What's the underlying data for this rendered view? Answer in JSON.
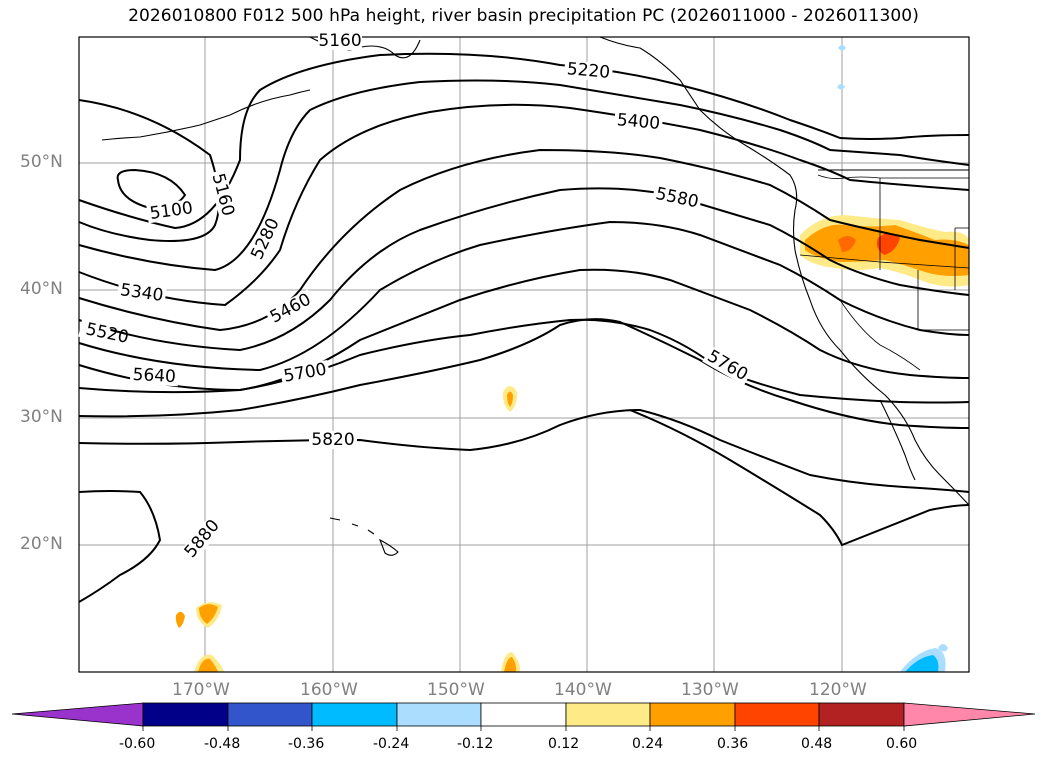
{
  "title": "2026010800 F012 500 hPa height, river basin precipitation PC (2026011000 - 2026011300)",
  "lat_labels": [
    "50°N",
    "40°N",
    "30°N",
    "20°N"
  ],
  "lon_labels": [
    "170°W",
    "160°W",
    "150°W",
    "140°W",
    "130°W",
    "120°W"
  ],
  "contour_labels": [
    "5160",
    "5220",
    "5400",
    "5580",
    "5100",
    "5160",
    "5280",
    "5340",
    "5460",
    "5520",
    "5640",
    "5700",
    "5760",
    "5820",
    "5880"
  ],
  "colorbar": {
    "ticks": [
      "-0.60",
      "-0.48",
      "-0.36",
      "-0.24",
      "-0.12",
      "0.12",
      "0.24",
      "0.36",
      "0.48",
      "0.60"
    ],
    "colors": [
      "#9933cc",
      "#000088",
      "#3355cc",
      "#00bbff",
      "#aaddff",
      "#ffffff",
      "#ffea88",
      "#ffa000",
      "#ff4400",
      "#b22222",
      "#ff88aa"
    ]
  },
  "colors": {
    "contour": "#000000",
    "grid": "#a0a0a0",
    "coast": "#000000",
    "tick_label": "#808080"
  }
}
